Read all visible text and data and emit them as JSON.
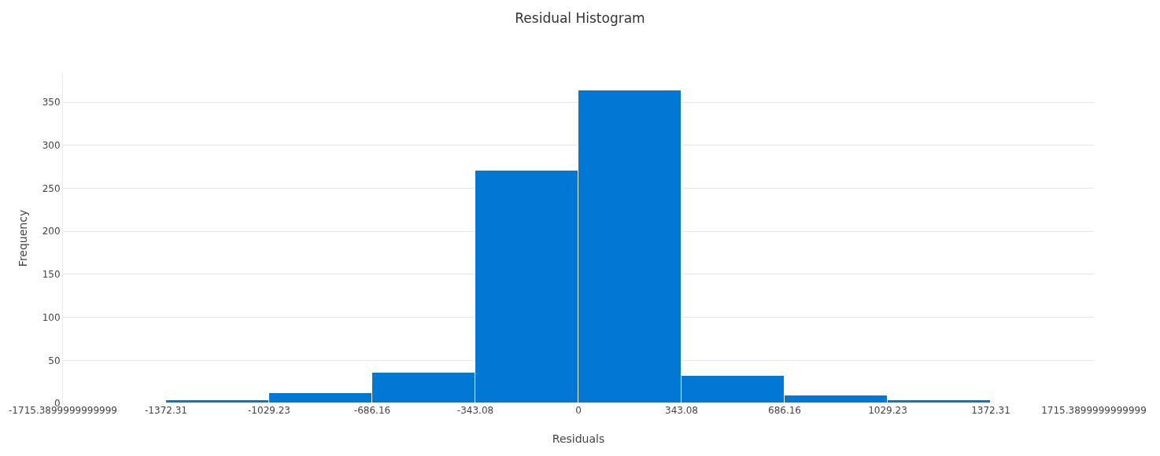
{
  "chart_data": {
    "type": "histogram",
    "title": "Residual Histogram",
    "xlabel": "Residuals",
    "ylabel": "Frequency",
    "bins": [
      -1715.39,
      -1372.31,
      -1029.23,
      -686.16,
      -343.08,
      0,
      343.08,
      686.16,
      1029.23,
      1372.31,
      1715.39
    ],
    "values": [
      0,
      4,
      12,
      36,
      271,
      364,
      32,
      9,
      4,
      0
    ],
    "color": "#0277d4",
    "xlim": [
      -1715.39,
      1715.39
    ],
    "xticks": [
      {
        "value": -1715.39,
        "label": "-1715.3899999999999"
      },
      -1372.31,
      -1029.23,
      -686.16,
      -343.08,
      0,
      343.08,
      686.16,
      1029.23,
      1372.31,
      {
        "value": 1715.39,
        "label": "1715.3899999999999"
      }
    ],
    "ylim": [
      0,
      384
    ],
    "yticks": [
      0,
      50,
      100,
      150,
      200,
      250,
      300,
      350
    ],
    "grid": "y"
  }
}
